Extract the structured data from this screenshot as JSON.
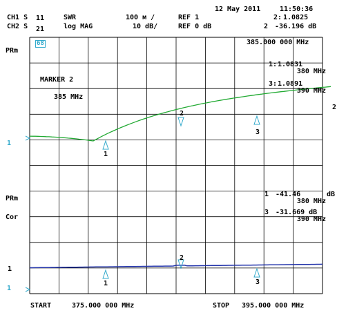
{
  "header": {
    "date": "12 May 2011",
    "time": "11:50:36",
    "ch1": {
      "label": "CH1 S",
      "param": "11",
      "format": "SWR",
      "scale": "100 м /",
      "ref": "REF 1"
    },
    "ch2": {
      "label": "CH2 S",
      "param": "21",
      "format": "log MAG",
      "scale": "10 dB/",
      "ref": "REF 0 dB"
    },
    "ch1_marker_readout": {
      "number": "2:",
      "value": "1.0825"
    },
    "ch2_marker_readout": {
      "number": "2",
      "value": "-36.196 dB"
    }
  },
  "upper_panel": {
    "side_label": "PRm",
    "ref_tick": "1",
    "box_glyph": "68",
    "active_marker_freq": "385.000 000 MHz",
    "marker_title": "MARKER 2",
    "marker_freq": "385 MHz",
    "markers": [
      {
        "id": "1:",
        "value": "1.0831",
        "freq": "380 MHz"
      },
      {
        "id": "3:",
        "value": "1.0891",
        "freq": "390 MHz"
      }
    ],
    "trace_labels": [
      "1",
      "2",
      "3"
    ],
    "end_label": "2"
  },
  "lower_panel": {
    "side_label": "PRm",
    "cor_label": "Cor",
    "ref_tick": "1",
    "left_label": "1",
    "markers": [
      {
        "id": "1",
        "value": "-41.46",
        "unit": "dB",
        "freq": "380 MHz"
      },
      {
        "id": "3",
        "value": "-31.669 dB",
        "freq": "390 MHz"
      }
    ],
    "trace_labels": [
      "1",
      "2",
      "3"
    ]
  },
  "footer": {
    "start_label": "START",
    "start_value": "375.000 000 MHz",
    "stop_label": "STOP",
    "stop_value": "395.000 000 MHz"
  },
  "colors": {
    "grid": "#000000",
    "trace_upper": "#22aa33",
    "trace_lower": "#2233aa",
    "marker_triangle": "#33aacc",
    "ref_tick": "#33aacc"
  }
}
